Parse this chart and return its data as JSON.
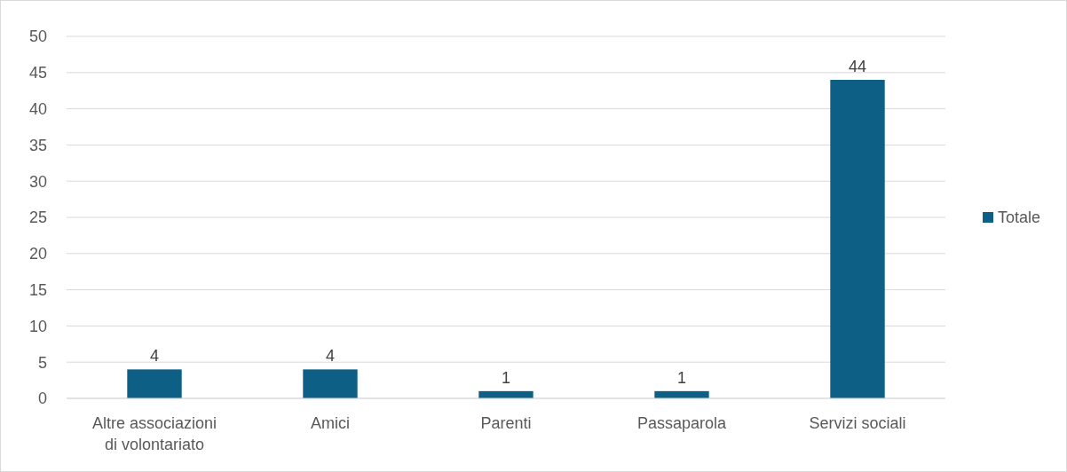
{
  "chart_data": {
    "type": "bar",
    "categories": [
      "Altre associazioni di volontariato",
      "Amici",
      "Parenti",
      "Passaparola",
      "Servizi sociali"
    ],
    "series": [
      {
        "name": "Totale",
        "color": "#0e5f86",
        "values": [
          4,
          4,
          1,
          1,
          44
        ]
      }
    ],
    "ylim": [
      0,
      50
    ],
    "yticks": [
      0,
      5,
      10,
      15,
      20,
      25,
      30,
      35,
      40,
      45,
      50
    ],
    "grid": "y",
    "legend": "right",
    "data_labels": true
  }
}
